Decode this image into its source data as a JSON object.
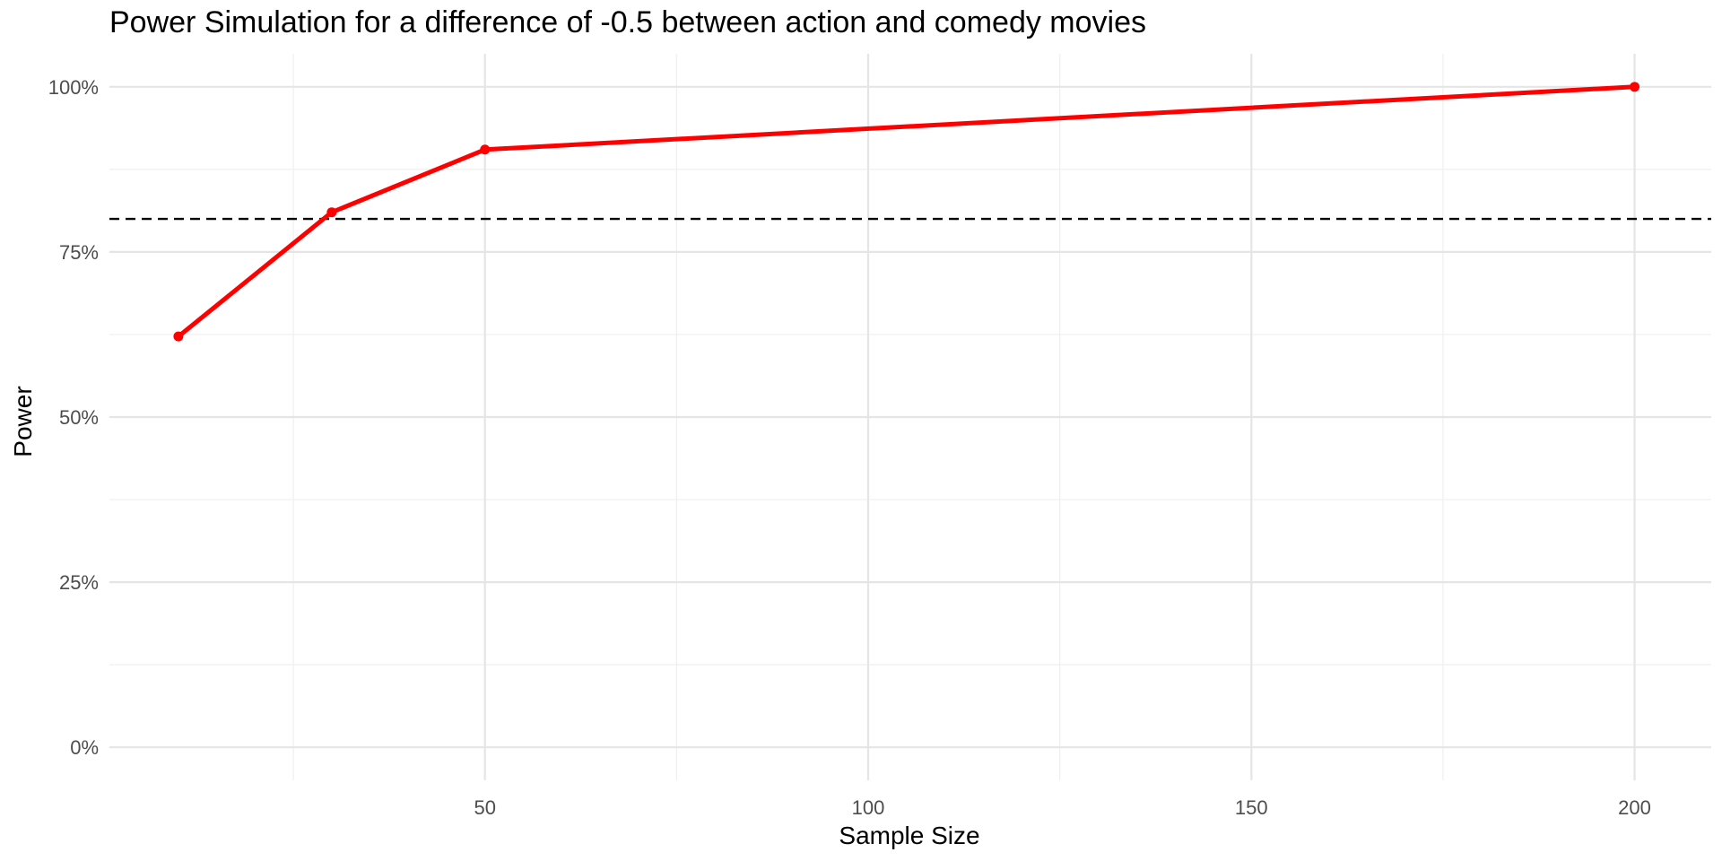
{
  "chart_data": {
    "type": "line",
    "title": "Power Simulation for a difference of -0.5 between action and comedy movies",
    "xlabel": "Sample Size",
    "ylabel": "Power",
    "x_ticks": [
      50,
      100,
      150,
      200
    ],
    "y_ticks": [
      "0%",
      "25%",
      "50%",
      "75%",
      "100%"
    ],
    "y_tick_values": [
      0,
      0.25,
      0.5,
      0.75,
      1.0
    ],
    "xlim": [
      1,
      210
    ],
    "ylim": [
      -0.05,
      1.05
    ],
    "grid": true,
    "reference_line": {
      "y": 0.8,
      "style": "dashed",
      "color": "#000000"
    },
    "series": [
      {
        "color": "#ff0000",
        "x": [
          10,
          30,
          50,
          200
        ],
        "y": [
          0.622,
          0.81,
          0.905,
          1.0
        ]
      }
    ]
  }
}
